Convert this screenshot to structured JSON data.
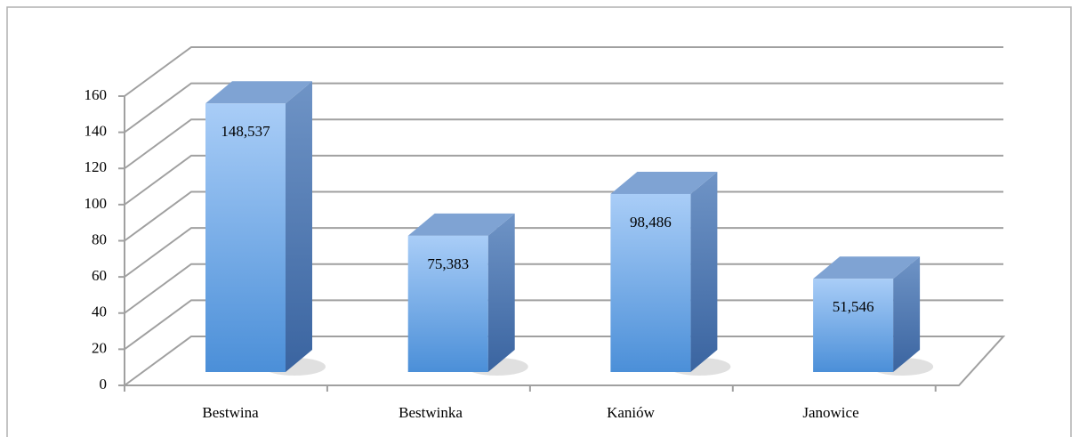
{
  "chart_data": {
    "type": "bar3d",
    "categories": [
      "Bestwina",
      "Bestwinka",
      "Kaniów",
      "Janowice"
    ],
    "values": [
      148.537,
      75.383,
      98.486,
      51.546
    ],
    "value_labels": [
      "148,537",
      "75,383",
      "98,486",
      "51,546"
    ],
    "color": "#5b9be0",
    "ylim": [
      0,
      160
    ],
    "yticks": [
      0,
      20,
      40,
      60,
      80,
      100,
      120,
      140,
      160
    ],
    "grid": true
  }
}
